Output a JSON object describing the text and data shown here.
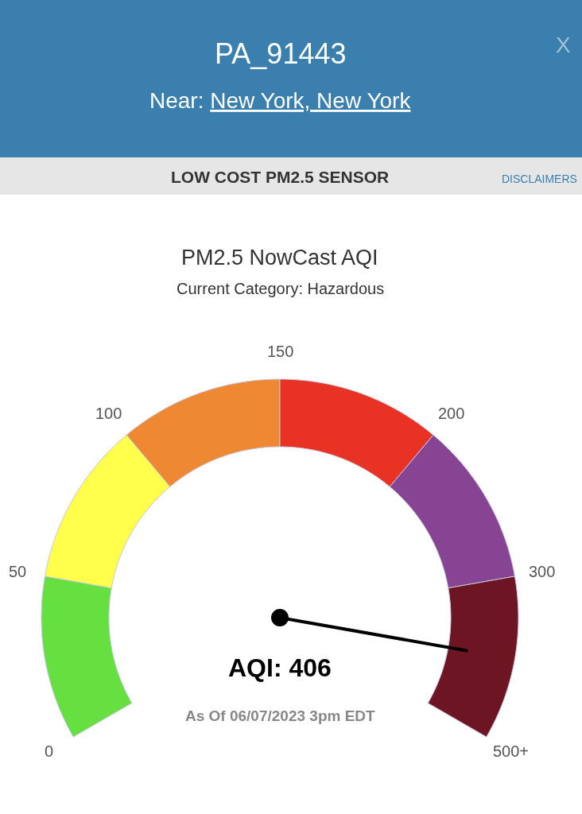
{
  "chart_data": {
    "type": "donut",
    "title": "PM2.5 NowCast AQI",
    "subtitle": "Current Category: Hazardous",
    "categories": [
      "0",
      "50",
      "100",
      "150",
      "200",
      "300"
    ],
    "values": [
      16.67,
      16.67,
      16.66,
      16.67,
      16.67,
      16.66
    ],
    "colors": [
      "#66e040",
      "#ffff4c",
      "#ee8833",
      "#e83223",
      "#874493",
      "#6e1523"
    ],
    "needle": "300",
    "annotations": [
      "500+",
      "AQI: 406",
      "As Of 06/07/2023 3pm EDT",
      "PA_91443",
      "Near: New York, New York",
      "LOW COST PM2.5 SENSOR",
      "DISCLAIMERS",
      "X"
    ]
  }
}
